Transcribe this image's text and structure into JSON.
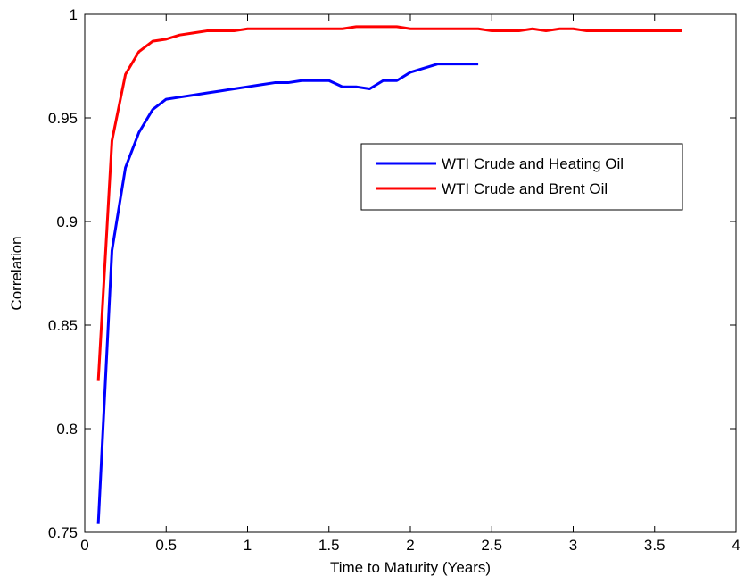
{
  "chart_data": {
    "type": "line",
    "title": "",
    "xlabel": "Time to Maturity (Years)",
    "ylabel": "Correlation",
    "xlim": [
      0,
      4
    ],
    "ylim": [
      0.75,
      1
    ],
    "xticks": [
      0,
      0.5,
      1,
      1.5,
      2,
      2.5,
      3,
      3.5,
      4
    ],
    "yticks": [
      0.75,
      0.8,
      0.85,
      0.9,
      0.95,
      1
    ],
    "xtick_labels": [
      "0",
      "0.5",
      "1",
      "1.5",
      "2",
      "2.5",
      "3",
      "3.5",
      "4"
    ],
    "ytick_labels": [
      "0.75",
      "0.8",
      "0.85",
      "0.9",
      "0.95",
      "1"
    ],
    "grid": false,
    "legend_position": "center-right",
    "series": [
      {
        "name": "WTI Crude and Heating Oil",
        "color": "#0000ff",
        "x": [
          0.083,
          0.167,
          0.25,
          0.333,
          0.417,
          0.5,
          0.583,
          0.667,
          0.75,
          0.833,
          0.917,
          1.0,
          1.083,
          1.167,
          1.25,
          1.333,
          1.417,
          1.5,
          1.583,
          1.667,
          1.75,
          1.833,
          1.917,
          2.0,
          2.083,
          2.167,
          2.25,
          2.333,
          2.417
        ],
        "y": [
          0.754,
          0.886,
          0.926,
          0.943,
          0.954,
          0.959,
          0.96,
          0.961,
          0.962,
          0.963,
          0.964,
          0.965,
          0.966,
          0.967,
          0.967,
          0.968,
          0.968,
          0.968,
          0.965,
          0.965,
          0.964,
          0.968,
          0.968,
          0.972,
          0.974,
          0.976,
          0.976,
          0.976,
          0.976
        ]
      },
      {
        "name": "WTI Crude and Brent Oil",
        "color": "#ff0000",
        "x": [
          0.083,
          0.167,
          0.25,
          0.333,
          0.417,
          0.5,
          0.583,
          0.667,
          0.75,
          0.833,
          0.917,
          1.0,
          1.25,
          1.5,
          1.583,
          1.667,
          1.75,
          1.833,
          1.917,
          2.0,
          2.25,
          2.417,
          2.5,
          2.667,
          2.75,
          2.833,
          2.917,
          3.0,
          3.083,
          3.25,
          3.5,
          3.667
        ],
        "y": [
          0.823,
          0.939,
          0.971,
          0.982,
          0.987,
          0.988,
          0.99,
          0.991,
          0.992,
          0.992,
          0.992,
          0.993,
          0.993,
          0.993,
          0.993,
          0.994,
          0.994,
          0.994,
          0.994,
          0.993,
          0.993,
          0.993,
          0.992,
          0.992,
          0.993,
          0.992,
          0.993,
          0.993,
          0.992,
          0.992,
          0.992,
          0.992
        ]
      }
    ]
  }
}
